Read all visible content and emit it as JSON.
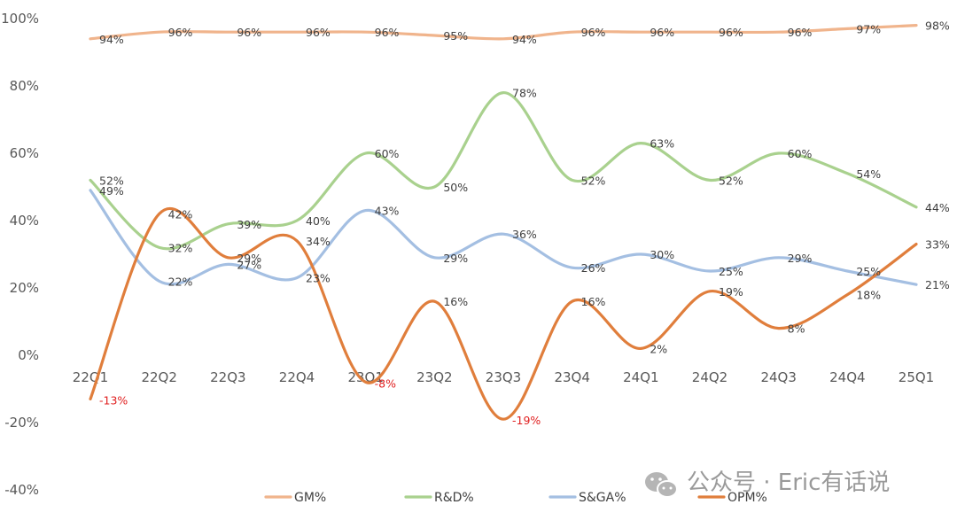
{
  "chart_data": {
    "type": "line",
    "categories": [
      "22Q1",
      "22Q2",
      "22Q3",
      "22Q4",
      "23Q1",
      "23Q2",
      "23Q3",
      "23Q4",
      "24Q1",
      "24Q2",
      "24Q3",
      "24Q4",
      "25Q1"
    ],
    "ylim": [
      -40,
      100
    ],
    "yticks": [
      "100%",
      "80%",
      "60%",
      "40%",
      "20%",
      "0%",
      "-20%",
      "-40%"
    ],
    "ytick_values": [
      100,
      80,
      60,
      40,
      20,
      0,
      -20,
      -40
    ],
    "series": [
      {
        "name": "GM%",
        "color": "#f0b48c",
        "values": [
          94,
          96,
          96,
          96,
          96,
          95,
          94,
          96,
          96,
          96,
          96,
          97,
          98
        ],
        "labels": [
          "94%",
          "96%",
          "96%",
          "96%",
          "96%",
          "95%",
          "94%",
          "96%",
          "96%",
          "96%",
          "96%",
          "97%",
          "98%"
        ]
      },
      {
        "name": "R&D%",
        "color": "#a9d18e",
        "values": [
          52,
          32,
          39,
          40,
          60,
          50,
          78,
          52,
          63,
          52,
          60,
          54,
          44
        ],
        "labels": [
          "52%",
          "32%",
          "39%",
          "40%",
          "60%",
          "50%",
          "78%",
          "52%",
          "63%",
          "52%",
          "60%",
          "54%",
          "44%"
        ]
      },
      {
        "name": "S&GA%",
        "color": "#a4bfe2",
        "values": [
          49,
          22,
          27,
          23,
          43,
          29,
          36,
          26,
          30,
          25,
          29,
          25,
          21
        ],
        "labels": [
          "49%",
          "22%",
          "27%",
          "23%",
          "43%",
          "29%",
          "36%",
          "26%",
          "30%",
          "25%",
          "29%",
          "25%",
          "21%"
        ]
      },
      {
        "name": "OPM%",
        "color": "#e07e3c",
        "values": [
          -13,
          42,
          29,
          34,
          -8,
          16,
          -19,
          16,
          2,
          19,
          8,
          18,
          33
        ],
        "labels": [
          "-13%",
          "42%",
          "29%",
          "34%",
          "-8%",
          "16%",
          "-19%",
          "16%",
          "2%",
          "19%",
          "8%",
          "18%",
          "33%"
        ]
      }
    ],
    "legend_position": "bottom",
    "grid": false
  },
  "watermark": {
    "text": "公众号 · Eric有话说",
    "icon": "wechat-icon"
  }
}
